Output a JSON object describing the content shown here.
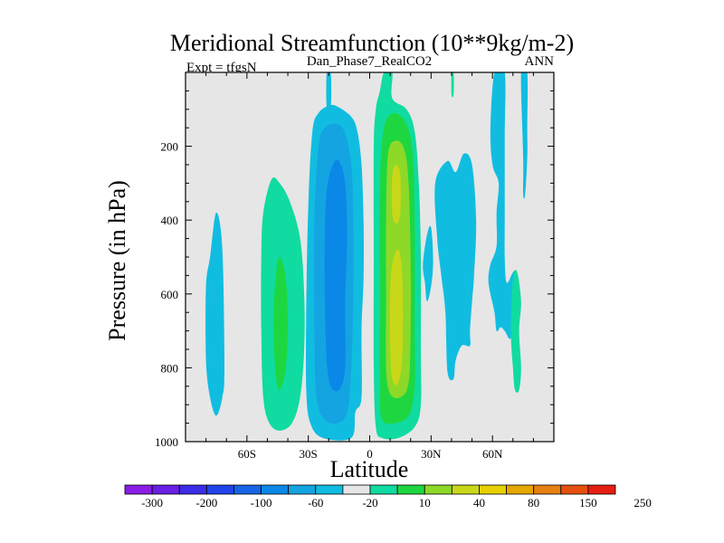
{
  "chart_data": {
    "type": "contour",
    "title": "Meridional Streamfunction (10**9kg/m-2)",
    "subtitle": "Dan_Phase7_RealCO2",
    "left_label": "Expt = tfgsN",
    "right_label": "ANN",
    "xlabel": "Latitude",
    "ylabel": "Pressure (in hPa)",
    "xlim": [
      -90,
      90
    ],
    "ylim": [
      1000,
      0
    ],
    "x_ticks": [
      -60,
      -30,
      0,
      30,
      60
    ],
    "x_tick_labels": [
      "60S",
      "30S",
      "0",
      "30N",
      "60N"
    ],
    "y_ticks": [
      200,
      400,
      600,
      800,
      1000
    ],
    "y_tick_labels": [
      "200",
      "400",
      "600",
      "800",
      "1000"
    ],
    "colorbar": {
      "tick_labels": [
        "-300",
        "-200",
        "-100",
        "-60",
        "-20",
        "10",
        "40",
        "80",
        "150",
        "250"
      ],
      "colors": [
        "#8a1ee6",
        "#6a1ee6",
        "#3c2ce8",
        "#2144ea",
        "#1764e6",
        "#0a88e8",
        "#14a4e2",
        "#10bde0",
        "#e6e6e6",
        "#10dba0",
        "#1ed740",
        "#8ed828",
        "#c8d818",
        "#e6d000",
        "#e6a800",
        "#e68010",
        "#e65010",
        "#e61e12"
      ]
    },
    "regions": [
      {
        "level": "-20",
        "color": "#10bde0",
        "points": [
          [
            -80,
            580
          ],
          [
            -78,
            500
          ],
          [
            -75,
            380
          ],
          [
            -72,
            480
          ],
          [
            -71,
            800
          ],
          [
            -72,
            880
          ],
          [
            -75,
            930
          ],
          [
            -78,
            880
          ],
          [
            -80,
            780
          ]
        ]
      },
      {
        "level": "10",
        "color": "#10dba0",
        "points": [
          [
            -48,
            290
          ],
          [
            -44,
            300
          ],
          [
            -39,
            350
          ],
          [
            -34,
            450
          ],
          [
            -32,
            600
          ],
          [
            -32,
            750
          ],
          [
            -34,
            880
          ],
          [
            -38,
            950
          ],
          [
            -44,
            970
          ],
          [
            -49,
            950
          ],
          [
            -52,
            880
          ],
          [
            -53,
            700
          ],
          [
            -53,
            500
          ],
          [
            -52,
            380
          ]
        ]
      },
      {
        "level": "40",
        "color": "#1ed740",
        "points": [
          [
            -44,
            500
          ],
          [
            -41,
            560
          ],
          [
            -40,
            680
          ],
          [
            -41,
            800
          ],
          [
            -44,
            860
          ],
          [
            -46,
            810
          ],
          [
            -47,
            680
          ],
          [
            -46,
            560
          ]
        ]
      },
      {
        "level": "-20",
        "color": "#10bde0",
        "points": [
          [
            -28,
            160
          ],
          [
            -25,
            110
          ],
          [
            -20,
            90
          ],
          [
            -16,
            92
          ],
          [
            -9,
            120
          ],
          [
            -6,
            160
          ],
          [
            -4,
            250
          ],
          [
            -3,
            400
          ],
          [
            -3,
            560
          ],
          [
            -4,
            700
          ],
          [
            -4,
            880
          ],
          [
            -7,
            920
          ],
          [
            -9,
            990
          ],
          [
            -23,
            990
          ],
          [
            -29,
            950
          ],
          [
            -31,
            860
          ],
          [
            -31,
            640
          ],
          [
            -30,
            360
          ]
        ]
      },
      {
        "level": "-20",
        "color": "#10bde0",
        "points": [
          [
            -21,
            0
          ],
          [
            -19,
            0
          ],
          [
            -19,
            95
          ],
          [
            -21,
            95
          ]
        ]
      },
      {
        "level": "-60",
        "color": "#14a4e2",
        "points": [
          [
            -25,
            200
          ],
          [
            -22,
            150
          ],
          [
            -16,
            140
          ],
          [
            -12,
            165
          ],
          [
            -9,
            250
          ],
          [
            -8,
            400
          ],
          [
            -8,
            600
          ],
          [
            -9,
            800
          ],
          [
            -11,
            920
          ],
          [
            -16,
            950
          ],
          [
            -22,
            940
          ],
          [
            -26,
            880
          ],
          [
            -27,
            700
          ],
          [
            -27,
            400
          ]
        ]
      },
      {
        "level": "-100",
        "color": "#0a88e8",
        "points": [
          [
            -21,
            320
          ],
          [
            -18,
            250
          ],
          [
            -15,
            240
          ],
          [
            -12,
            300
          ],
          [
            -11,
            450
          ],
          [
            -12,
            620
          ],
          [
            -12,
            800
          ],
          [
            -15,
            860
          ],
          [
            -19,
            850
          ],
          [
            -21,
            780
          ],
          [
            -22,
            600
          ],
          [
            -22,
            450
          ]
        ]
      },
      {
        "level": "10",
        "color": "#10dba0",
        "points": [
          [
            3,
            100
          ],
          [
            5,
            50
          ],
          [
            7,
            0
          ],
          [
            11,
            0
          ],
          [
            11,
            70
          ],
          [
            18,
            100
          ],
          [
            22,
            160
          ],
          [
            24,
            300
          ],
          [
            25,
            500
          ],
          [
            25,
            750
          ],
          [
            25,
            900
          ],
          [
            22,
            960
          ],
          [
            14,
            990
          ],
          [
            6,
            990
          ],
          [
            3,
            960
          ],
          [
            2,
            800
          ],
          [
            2,
            500
          ],
          [
            2,
            200
          ]
        ]
      },
      {
        "level": "40",
        "color": "#1ed740",
        "points": [
          [
            7,
            150
          ],
          [
            12,
            110
          ],
          [
            18,
            140
          ],
          [
            21,
            220
          ],
          [
            22,
            400
          ],
          [
            22,
            700
          ],
          [
            22,
            850
          ],
          [
            19,
            930
          ],
          [
            12,
            950
          ],
          [
            6,
            940
          ],
          [
            5,
            850
          ],
          [
            5,
            600
          ],
          [
            5,
            300
          ]
        ]
      },
      {
        "level": "80",
        "color": "#8ed828",
        "points": [
          [
            9,
            220
          ],
          [
            13,
            185
          ],
          [
            17,
            210
          ],
          [
            19,
            300
          ],
          [
            20,
            500
          ],
          [
            20,
            700
          ],
          [
            19,
            840
          ],
          [
            15,
            880
          ],
          [
            10,
            870
          ],
          [
            8,
            800
          ],
          [
            8,
            600
          ],
          [
            8,
            400
          ]
        ]
      },
      {
        "level": "150",
        "color": "#c8d818",
        "points": [
          [
            11,
            520
          ],
          [
            14,
            480
          ],
          [
            16,
            560
          ],
          [
            16,
            760
          ],
          [
            14,
            840
          ],
          [
            11,
            830
          ],
          [
            10,
            740
          ],
          [
            10,
            600
          ]
        ]
      },
      {
        "level": "150",
        "color": "#c8d818",
        "points": [
          [
            11,
            280
          ],
          [
            13,
            250
          ],
          [
            15,
            280
          ],
          [
            15,
            380
          ],
          [
            13,
            410
          ],
          [
            11,
            380
          ]
        ]
      },
      {
        "level": "-20",
        "color": "#10bde0",
        "points": [
          [
            32,
            300
          ],
          [
            38,
            240
          ],
          [
            42,
            270
          ],
          [
            46,
            220
          ],
          [
            50,
            250
          ],
          [
            52,
            400
          ],
          [
            51,
            550
          ],
          [
            50,
            620
          ],
          [
            49,
            700
          ],
          [
            49,
            740
          ],
          [
            45,
            740
          ],
          [
            42,
            780
          ],
          [
            41,
            830
          ],
          [
            38,
            810
          ],
          [
            37,
            650
          ],
          [
            35,
            550
          ],
          [
            33,
            450
          ]
        ]
      },
      {
        "level": "-20",
        "color": "#10bde0",
        "points": [
          [
            26,
            520
          ],
          [
            28,
            440
          ],
          [
            30,
            420
          ],
          [
            31,
            510
          ],
          [
            30,
            580
          ],
          [
            28,
            620
          ],
          [
            27,
            570
          ]
        ]
      },
      {
        "level": "-20",
        "color": "#10bde0",
        "points": [
          [
            61,
            0
          ],
          [
            66,
            0
          ],
          [
            66,
            180
          ],
          [
            66,
            400
          ],
          [
            66,
            500
          ],
          [
            67,
            570
          ],
          [
            71,
            540
          ],
          [
            72,
            650
          ],
          [
            69,
            720
          ],
          [
            66,
            700
          ],
          [
            64,
            690
          ],
          [
            62,
            700
          ],
          [
            61,
            650
          ],
          [
            59,
            600
          ],
          [
            58,
            560
          ],
          [
            59,
            520
          ],
          [
            62,
            470
          ],
          [
            62,
            380
          ],
          [
            63,
            300
          ],
          [
            60,
            250
          ],
          [
            59,
            150
          ]
        ]
      },
      {
        "level": "-20",
        "color": "#10bde0",
        "points": [
          [
            74,
            0
          ],
          [
            77,
            0
          ],
          [
            77,
            150
          ],
          [
            77,
            230
          ],
          [
            76,
            330
          ],
          [
            75,
            330
          ],
          [
            75,
            230
          ]
        ]
      },
      {
        "level": "10",
        "color": "#10dba0",
        "points": [
          [
            40,
            0
          ],
          [
            41,
            0
          ],
          [
            41,
            60
          ],
          [
            40,
            60
          ]
        ]
      },
      {
        "level": "10",
        "color": "#10dba0",
        "points": [
          [
            70,
            560
          ],
          [
            72,
            540
          ],
          [
            74,
            620
          ],
          [
            73,
            700
          ],
          [
            74,
            800
          ],
          [
            73,
            860
          ],
          [
            71,
            860
          ],
          [
            70,
            800
          ],
          [
            69,
            700
          ]
        ]
      }
    ]
  }
}
